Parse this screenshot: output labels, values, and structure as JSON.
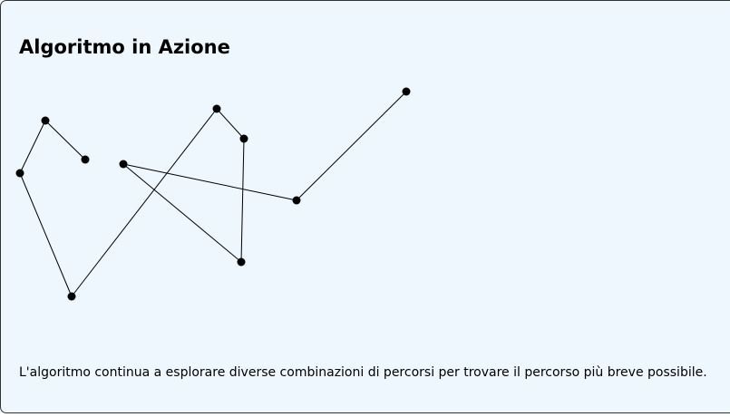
{
  "title": "Algoritmo in Azione",
  "description": "L'algoritmo continua a esplorare diverse combinazioni di percorsi per trovare il percorso più breve possibile.",
  "colors": {
    "background": "#eef6fe",
    "stroke": "#000000",
    "node": "#000000"
  }
}
